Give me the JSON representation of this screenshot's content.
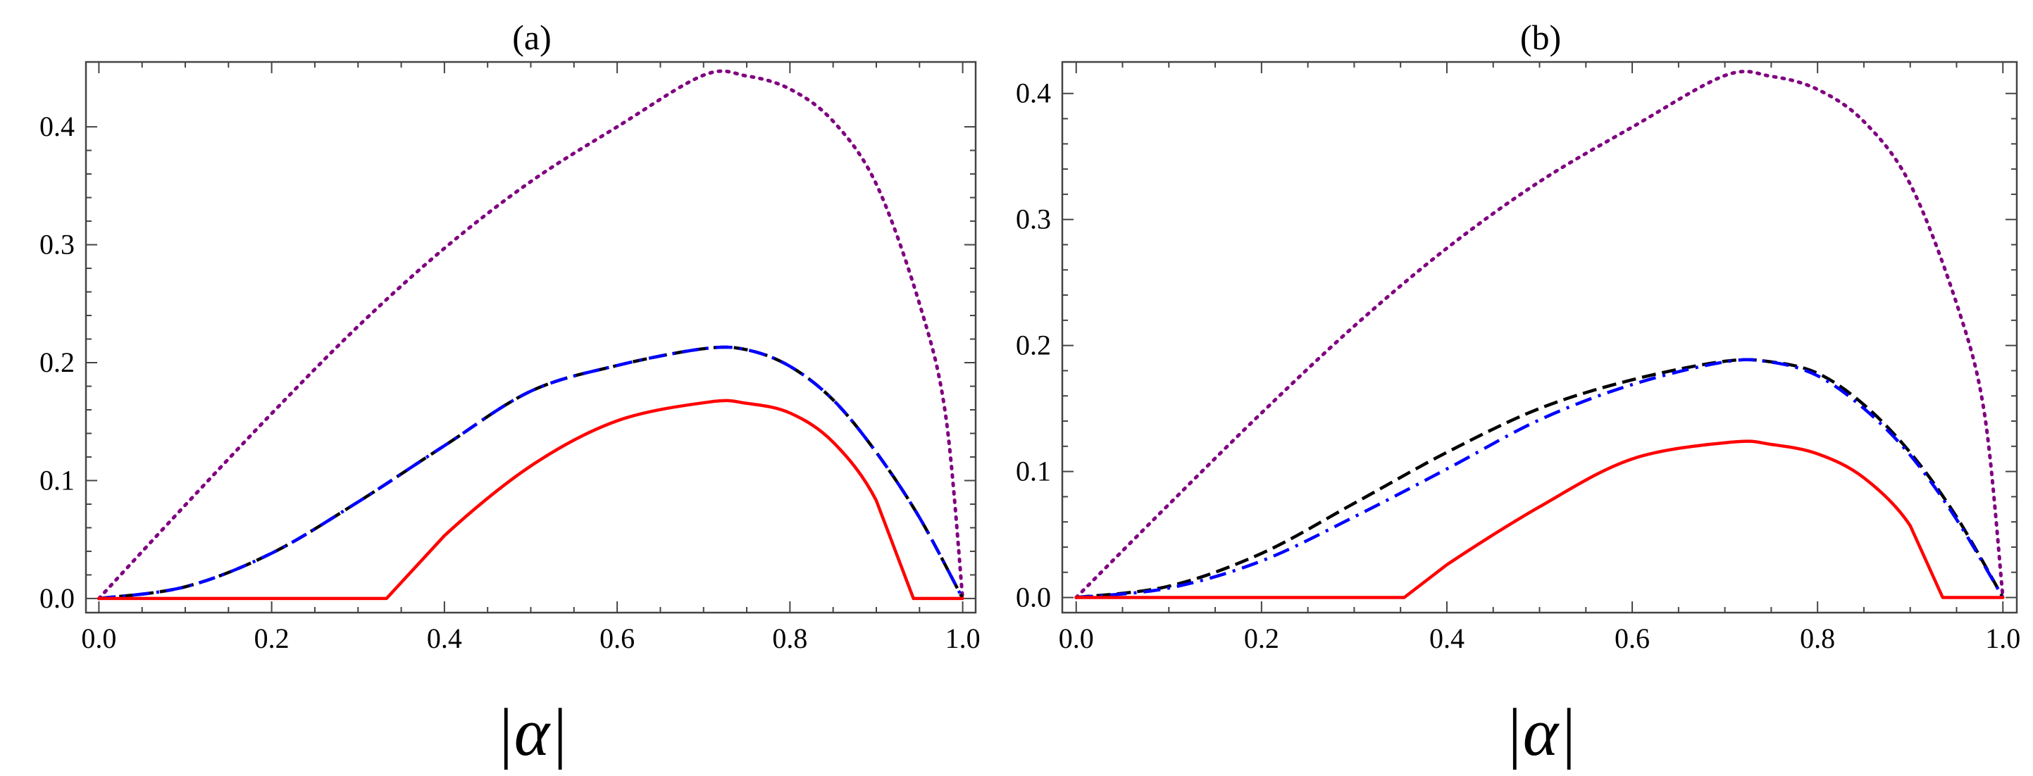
{
  "chart_data": [
    {
      "type": "line",
      "title": "(a)",
      "xlabel": "|α|",
      "ylabel": "",
      "xlim": [
        -0.015,
        1.015
      ],
      "ylim": [
        -0.012,
        0.455
      ],
      "x_ticks": [
        "0.0",
        "0.2",
        "0.4",
        "0.6",
        "0.8",
        "1.0"
      ],
      "y_ticks": [
        "0.0",
        "0.1",
        "0.2",
        "0.3",
        "0.4"
      ],
      "series": [
        {
          "name": "purple-dotted",
          "color": "#800080",
          "style": "dotted",
          "x": [
            0,
            0.1,
            0.2,
            0.3,
            0.4,
            0.5,
            0.6,
            0.7,
            0.75,
            0.8,
            0.85,
            0.9,
            0.95,
            0.98,
            1.0
          ],
          "y": [
            0,
            0.0792,
            0.1568,
            0.2308,
            0.297,
            0.3536,
            0.4,
            0.4438,
            0.4431,
            0.432,
            0.4047,
            0.3514,
            0.2499,
            0.1567,
            0
          ]
        },
        {
          "name": "black-dashed",
          "color": "#000000",
          "style": "dashed",
          "x": [
            0,
            0.1,
            0.2,
            0.3,
            0.4,
            0.5,
            0.6,
            0.7,
            0.75,
            0.8,
            0.85,
            0.9,
            0.95,
            1.0
          ],
          "y": [
            0,
            0.0099,
            0.0384,
            0.0819,
            0.1296,
            0.1758,
            0.1976,
            0.2118,
            0.2109,
            0.1969,
            0.1684,
            0.1239,
            0.0686,
            0
          ]
        },
        {
          "name": "blue-dashdot",
          "color": "#0000ff",
          "style": "dashdot",
          "x": [
            0,
            0.1,
            0.2,
            0.3,
            0.4,
            0.5,
            0.6,
            0.7,
            0.75,
            0.8,
            0.85,
            0.9,
            0.95,
            1.0
          ],
          "y": [
            0,
            0.0099,
            0.0384,
            0.0819,
            0.1296,
            0.1758,
            0.1976,
            0.2118,
            0.2109,
            0.1969,
            0.1684,
            0.1239,
            0.0686,
            0
          ]
        },
        {
          "name": "red-solid",
          "color": "#ff0000",
          "style": "solid",
          "x": [
            0,
            0.333,
            0.4,
            0.5,
            0.6,
            0.707,
            0.75,
            0.8,
            0.85,
            0.9,
            0.943,
            1.0
          ],
          "y": [
            0,
            0,
            0.0533,
            0.1124,
            0.1507,
            0.1667,
            0.1655,
            0.1573,
            0.1326,
            0.083,
            0,
            0
          ]
        }
      ]
    },
    {
      "type": "line",
      "title": "(b)",
      "xlabel": "|α|",
      "ylabel": "",
      "xlim": [
        -0.015,
        1.015
      ],
      "ylim": [
        -0.012,
        0.425
      ],
      "x_ticks": [
        "0.0",
        "0.2",
        "0.4",
        "0.6",
        "0.8",
        "1.0"
      ],
      "y_ticks": [
        "0.0",
        "0.1",
        "0.2",
        "0.3",
        "0.4"
      ],
      "series": [
        {
          "name": "purple-dotted",
          "color": "#800080",
          "style": "dotted",
          "x": [
            0,
            0.1,
            0.2,
            0.3,
            0.4,
            0.5,
            0.6,
            0.7,
            0.75,
            0.8,
            0.85,
            0.9,
            0.95,
            0.98,
            1.0
          ],
          "y": [
            0,
            0.0739,
            0.1464,
            0.2154,
            0.2772,
            0.33,
            0.3733,
            0.4142,
            0.4136,
            0.4032,
            0.3777,
            0.328,
            0.2333,
            0.1463,
            0
          ]
        },
        {
          "name": "black-dashed",
          "color": "#000000",
          "style": "dashed",
          "x": [
            0,
            0.1,
            0.2,
            0.3,
            0.4,
            0.5,
            0.6,
            0.7,
            0.75,
            0.8,
            0.85,
            0.9,
            0.95,
            1.0
          ],
          "y": [
            0,
            0.009,
            0.035,
            0.0748,
            0.1152,
            0.15,
            0.1728,
            0.1875,
            0.187,
            0.178,
            0.153,
            0.115,
            0.064,
            0
          ]
        },
        {
          "name": "blue-dashdot",
          "color": "#0000ff",
          "style": "dashdot",
          "x": [
            0,
            0.1,
            0.2,
            0.3,
            0.4,
            0.5,
            0.6,
            0.7,
            0.75,
            0.8,
            0.85,
            0.9,
            0.95,
            1.0
          ],
          "y": [
            0,
            0.0075,
            0.029,
            0.064,
            0.102,
            0.141,
            0.169,
            0.187,
            0.1868,
            0.176,
            0.15,
            0.113,
            0.062,
            0
          ]
        },
        {
          "name": "red-solid",
          "color": "#ff0000",
          "style": "solid",
          "x": [
            0,
            0.354,
            0.4,
            0.5,
            0.6,
            0.707,
            0.75,
            0.8,
            0.85,
            0.9,
            0.935,
            1.0
          ],
          "y": [
            0,
            0,
            0.026,
            0.072,
            0.11,
            0.1233,
            0.1215,
            0.114,
            0.095,
            0.057,
            0,
            0
          ]
        }
      ]
    }
  ]
}
